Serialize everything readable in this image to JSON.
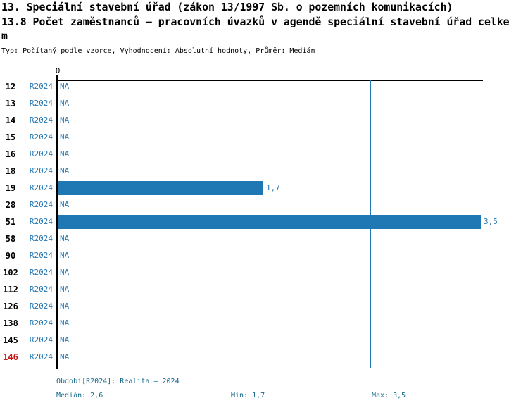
{
  "header": {
    "title": "13. Speciální stavební úřad (zákon 13/1997 Sb. o pozemních komunikacích)",
    "subtitle": "13.8 Počet zaměstnanců – pracovních úvazků v agendě speciální stavební úřad celkem",
    "meta": "Typ: Počítaný podle vzorce, Vyhodnocení: Absolutní hodnoty, Průměr: Medián"
  },
  "chart_data": {
    "type": "bar",
    "orientation": "horizontal",
    "title": "13.8 Počet zaměstnanců – pracovních úvazků v agendě speciální stavební úřad celkem",
    "categories": [
      "12",
      "13",
      "14",
      "15",
      "16",
      "18",
      "19",
      "28",
      "51",
      "58",
      "90",
      "102",
      "112",
      "126",
      "138",
      "145",
      "146"
    ],
    "series": [
      {
        "name": "R2024",
        "values": [
          null,
          null,
          null,
          null,
          null,
          null,
          1.7,
          null,
          3.5,
          null,
          null,
          null,
          null,
          null,
          null,
          null,
          null
        ]
      }
    ],
    "value_display": [
      "NA",
      "NA",
      "NA",
      "NA",
      "NA",
      "NA",
      "1,7",
      "NA",
      "3,5",
      "NA",
      "NA",
      "NA",
      "NA",
      "NA",
      "NA",
      "NA",
      "NA"
    ],
    "zero_label": "0",
    "xlim": [
      0,
      3.53
    ],
    "grid": false,
    "legend": false,
    "median": 2.6,
    "min": 1.7,
    "max": 3.5,
    "reference_line": {
      "axis": "x",
      "value": 2.6,
      "meaning": "Medián"
    },
    "highlighted_category": "146",
    "colors": {
      "bar": "#1f77b4",
      "median_line": "#1f77b4",
      "blue_text": "#2878b4",
      "red_text": "#c91414",
      "footer_text": "#176a8c",
      "axis": "#000000"
    }
  },
  "footer": {
    "period": "Období[R2024]: Realita – 2024",
    "median": "Medián: 2,6",
    "min": "Min: 1,7",
    "max": "Max: 3,5"
  }
}
